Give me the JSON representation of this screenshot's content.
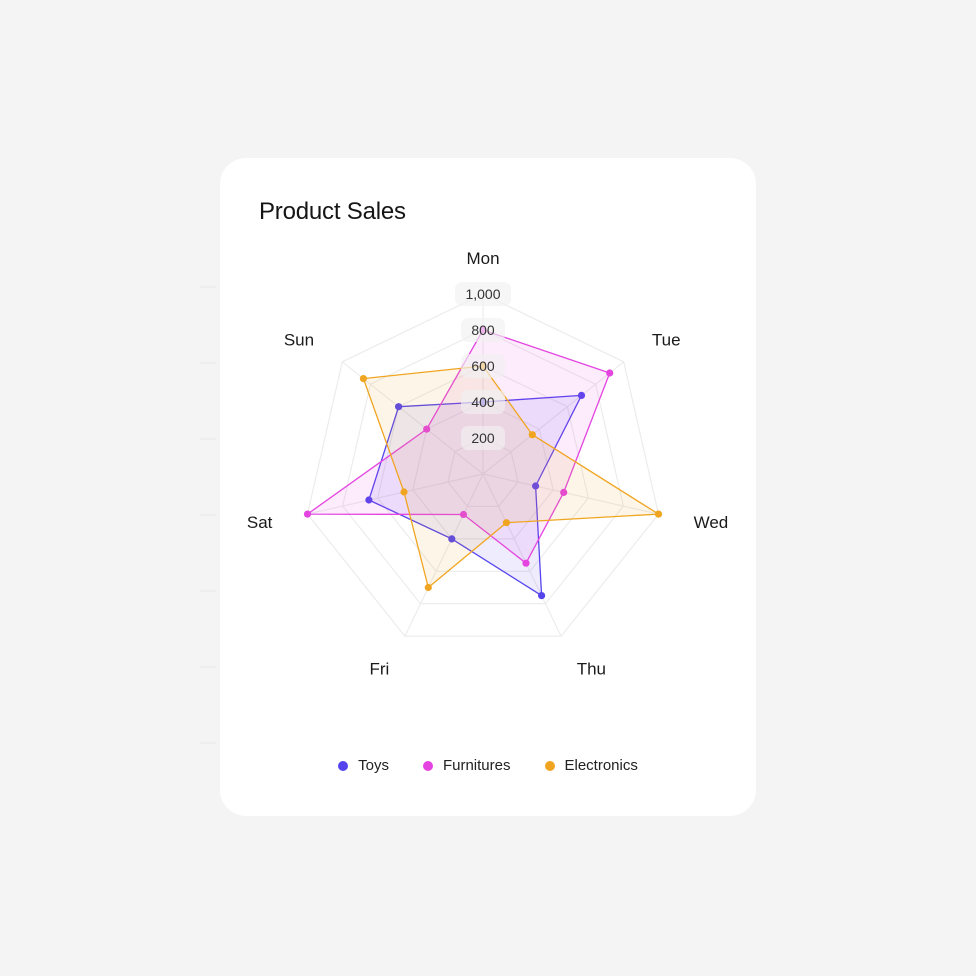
{
  "card": {
    "title": "Product Sales"
  },
  "chart_data": {
    "type": "radar",
    "title": "Product Sales",
    "categories": [
      "Mon",
      "Tue",
      "Wed",
      "Thu",
      "Fri",
      "Sat",
      "Sun"
    ],
    "radial_ticks": [
      "200",
      "400",
      "600",
      "800",
      "1,000"
    ],
    "radial_range": [
      0,
      1000
    ],
    "grid": true,
    "legend_position": "bottom",
    "series": [
      {
        "name": "Toys",
        "color": "#5544ee",
        "values": [
          400,
          700,
          300,
          750,
          400,
          650,
          600
        ]
      },
      {
        "name": "Furnitures",
        "color": "#e444e0",
        "values": [
          800,
          900,
          460,
          550,
          250,
          1000,
          400
        ]
      },
      {
        "name": "Electronics",
        "color": "#f0a521",
        "values": [
          600,
          350,
          1000,
          300,
          700,
          450,
          850
        ]
      }
    ]
  }
}
